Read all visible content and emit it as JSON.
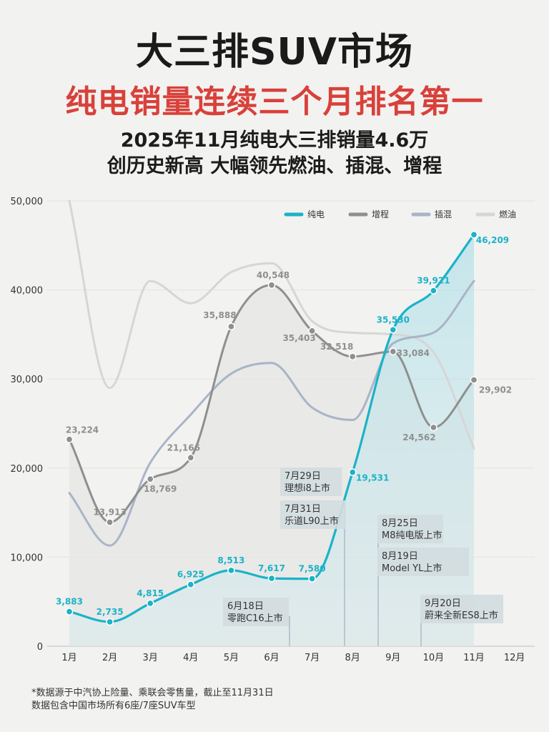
{
  "header": {
    "title": "大三排SUV市场",
    "headline": "纯电销量连续三个月排名第一",
    "subtitle_line1": "2025年11月纯电大三排销量4.6万",
    "subtitle_line2": "创历史新高 大幅领先燃油、插混、增程"
  },
  "footnote": {
    "line1": "*数据源于中汽协上险量、乘联会零售量，截止至11月31日",
    "line2": "数据包含中国市场所有6座/7座SUV车型"
  },
  "colors": {
    "bev": "#1bb3c8",
    "erev": "#8f8f8f",
    "phev": "#a9b4c8",
    "ice": "#d6d6d6",
    "headline": "#d8413a",
    "annotation_bg": "#d2dce0"
  },
  "chart_data": {
    "type": "line",
    "categories": [
      "1月",
      "2月",
      "3月",
      "4月",
      "5月",
      "6月",
      "7月",
      "8月",
      "9月",
      "10月",
      "11月",
      "12月"
    ],
    "ylim": [
      0,
      50000
    ],
    "yticks": [
      0,
      10000,
      20000,
      30000,
      40000,
      50000
    ],
    "ytick_labels": [
      "0",
      "10,000",
      "20,000",
      "30,000",
      "40,000",
      "50,000"
    ],
    "grid": true,
    "legend_position": "top-right",
    "series": [
      {
        "name": "纯电",
        "key": "bev",
        "values": [
          3883,
          2735,
          4815,
          6925,
          8513,
          7617,
          7580,
          19531,
          35530,
          39921,
          46209,
          null
        ],
        "labels": [
          "3,883",
          "2,735",
          "4,815",
          "6,925",
          "8,513",
          "7,617",
          "7,580",
          "19,531",
          "35,530",
          "39,921",
          "46,209",
          ""
        ]
      },
      {
        "name": "增程",
        "key": "erev",
        "values": [
          23224,
          13913,
          18769,
          21166,
          35888,
          40548,
          35403,
          32518,
          33084,
          24562,
          29902,
          null
        ],
        "labels": [
          "23,224",
          "13,913",
          "18,769",
          "21,166",
          "35,888",
          "40,548",
          "35,403",
          "32,518",
          "33,084",
          "24,562",
          "29,902",
          ""
        ]
      },
      {
        "name": "插混",
        "key": "phev",
        "values": [
          17200,
          11300,
          20600,
          26000,
          30600,
          31800,
          26800,
          25400,
          34000,
          35200,
          41000,
          null
        ]
      },
      {
        "name": "燃油",
        "key": "ice",
        "values": [
          50000,
          29000,
          41000,
          38500,
          42000,
          43000,
          36500,
          35200,
          35000,
          33000,
          22200,
          null
        ]
      }
    ],
    "annotations": [
      {
        "x": "8月",
        "box": "top",
        "lines": [
          "7月29日",
          "理想i8上市"
        ]
      },
      {
        "x": "8月",
        "box": "second",
        "lines": [
          "7月31日",
          "乐道L90上市"
        ]
      },
      {
        "x": "9月",
        "box": "top",
        "lines": [
          "8月25日",
          "M8纯电版上市"
        ]
      },
      {
        "x": "9月",
        "box": "second",
        "lines": [
          "8月19日",
          "Model YL上市"
        ]
      },
      {
        "x": "7月",
        "box": "bottom",
        "lines": [
          "6月18日",
          "零跑C16上市"
        ]
      },
      {
        "x": "10月",
        "box": "bottom",
        "lines": [
          "9月20日",
          "蔚来全新ES8上市"
        ]
      }
    ]
  }
}
